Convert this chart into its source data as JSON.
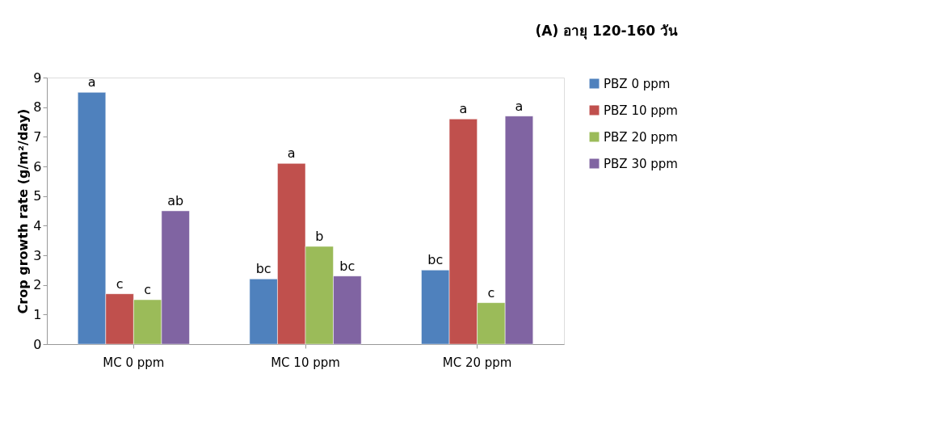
{
  "chart_data": {
    "type": "bar",
    "title": "(A) อายุ 120-160 วัน",
    "ylabel": "Crop growth rate (g/m²/day)",
    "categories": [
      "MC 0 ppm",
      "MC 10 ppm",
      "MC 20 ppm"
    ],
    "series": [
      {
        "name": "PBZ 0 ppm",
        "color": "#4f81bd",
        "values": [
          8.5,
          2.2,
          2.5
        ],
        "value_labels": [
          "a",
          "bc",
          "bc"
        ]
      },
      {
        "name": "PBZ 10 ppm",
        "color": "#c0504d",
        "values": [
          1.7,
          6.1,
          7.6
        ],
        "value_labels": [
          "c",
          "a",
          "a"
        ]
      },
      {
        "name": "PBZ 20 ppm",
        "color": "#9bbb59",
        "values": [
          1.5,
          3.3,
          1.4
        ],
        "value_labels": [
          "c",
          "b",
          "c"
        ]
      },
      {
        "name": "PBZ 30 ppm",
        "color": "#8064a2",
        "values": [
          4.5,
          2.3,
          7.7
        ],
        "value_labels": [
          "ab",
          "bc",
          "a"
        ]
      }
    ],
    "ylim": [
      0,
      9
    ],
    "yticks": [
      0,
      1,
      2,
      3,
      4,
      5,
      6,
      7,
      8,
      9
    ],
    "grid": false,
    "legend": "right"
  }
}
